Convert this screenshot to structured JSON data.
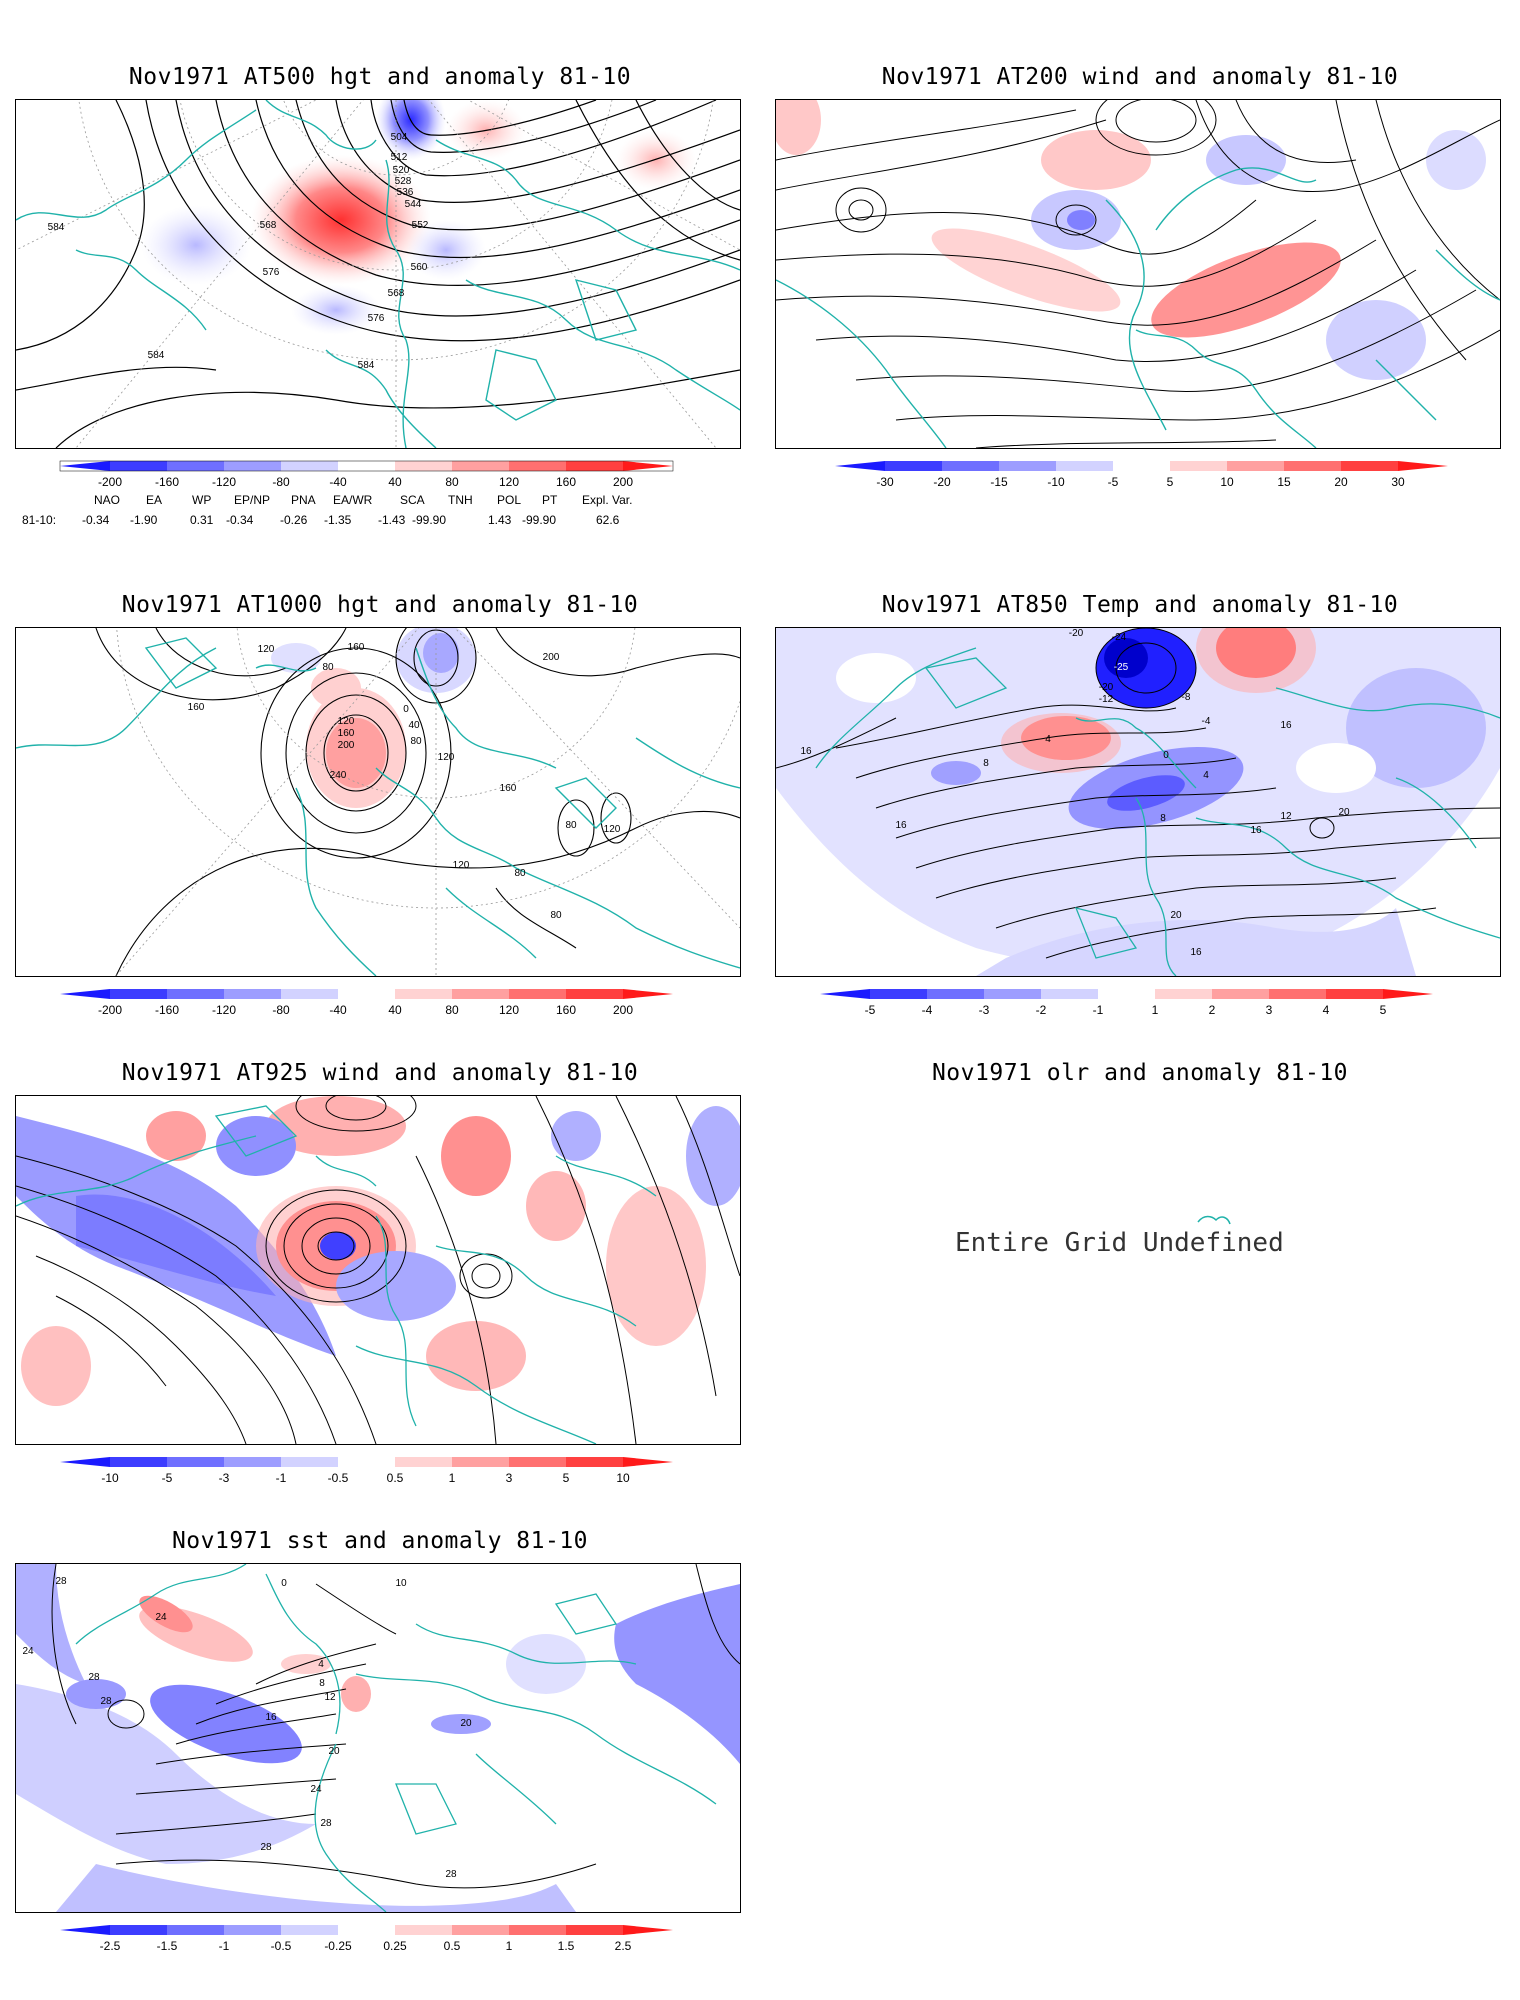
{
  "panels": [
    {
      "id": "hgt500",
      "title": "Nov1971 AT500 hgt and anomaly 81-10",
      "contour_labels": [
        "504",
        "512",
        "520",
        "528",
        "536",
        "544",
        "552",
        "560",
        "568",
        "576",
        "584",
        "568",
        "576",
        "584",
        "584"
      ],
      "colorbar": [
        "-200",
        "-160",
        "-120",
        "-80",
        "-40",
        "40",
        "80",
        "120",
        "160",
        "200"
      ]
    },
    {
      "id": "wind200",
      "title": "Nov1971 AT200 wind and anomaly 81-10",
      "colorbar": [
        "-30",
        "-20",
        "-15",
        "-10",
        "-5",
        "5",
        "10",
        "15",
        "20",
        "30"
      ]
    },
    {
      "id": "hgt1000",
      "title": "Nov1971 AT1000 hgt and anomaly 81-10",
      "contour_labels": [
        "120",
        "80",
        "160",
        "160",
        "200",
        "0",
        "40",
        "80",
        "120",
        "160",
        "200",
        "240",
        "120",
        "160",
        "80",
        "120",
        "80",
        "80",
        "120"
      ],
      "colorbar": [
        "-200",
        "-160",
        "-120",
        "-80",
        "-40",
        "40",
        "80",
        "120",
        "160",
        "200"
      ]
    },
    {
      "id": "temp850",
      "title": "Nov1971 AT850 Temp and anomaly 81-10",
      "contour_labels": [
        "-20",
        "-24",
        "-25",
        "-20",
        "-12",
        "-8",
        "-4",
        "4",
        "0",
        "4",
        "8",
        "8",
        "12",
        "16",
        "16",
        "20",
        "16",
        "20",
        "16",
        "16"
      ],
      "colorbar": [
        "-5",
        "-4",
        "-3",
        "-2",
        "-1",
        "1",
        "2",
        "3",
        "4",
        "5"
      ]
    },
    {
      "id": "wind925",
      "title": "Nov1971 AT925 wind and anomaly 81-10",
      "colorbar": [
        "-10",
        "-5",
        "-3",
        "-1",
        "-0.5",
        "0.5",
        "1",
        "3",
        "5",
        "10"
      ]
    },
    {
      "id": "olr",
      "title": "Nov1971 olr and anomaly 81-10",
      "message": "Entire Grid Undefined"
    },
    {
      "id": "sst",
      "title": "Nov1971 sst and anomaly 81-10",
      "contour_labels": [
        "28",
        "24",
        "28",
        "28",
        "24",
        "4",
        "8",
        "12",
        "16",
        "20",
        "20",
        "24",
        "28",
        "28",
        "28",
        "10",
        "0"
      ],
      "colorbar": [
        "-2.5",
        "-1.5",
        "-1",
        "-0.5",
        "-0.25",
        "0.25",
        "0.5",
        "1",
        "1.5",
        "2.5"
      ]
    }
  ],
  "teleconnection": {
    "headers": [
      "NAO",
      "EA",
      "WP",
      "EP/NP",
      "PNA",
      "EA/WR",
      "SCA",
      "TNH",
      "POL",
      "PT",
      "Expl. Var."
    ],
    "row_label": "81-10:",
    "values": [
      "-0.34",
      "-1.90",
      "0.31",
      "-0.34",
      "-0.26",
      "-1.35",
      "-1.43",
      "-99.90",
      "1.43",
      "-99.90",
      "62.6"
    ]
  },
  "colors": {
    "coast": "#20b2aa",
    "neg_strong": "#1a1aff",
    "pos_strong": "#ff1a1a"
  }
}
